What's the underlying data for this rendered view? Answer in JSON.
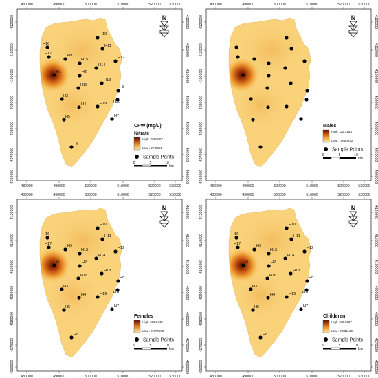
{
  "xticks": [
    "480000",
    "490000",
    "500000",
    "510000",
    "520000",
    "530000"
  ],
  "yticks": [
    "4120000",
    "4110000",
    "4100000",
    "4090000",
    "4080000",
    "4070000",
    "4060000"
  ],
  "sample_points": [
    {
      "label": "H16"
    },
    {
      "label": "H17"
    },
    {
      "label": "H9"
    },
    {
      "label": "H10"
    },
    {
      "label": "H11"
    },
    {
      "label": "H15"
    },
    {
      "label": "H14"
    },
    {
      "label": "H12"
    },
    {
      "label": "H1"
    },
    {
      "label": "H2"
    },
    {
      "label": "H18"
    },
    {
      "label": "H13"
    },
    {
      "label": "H8"
    },
    {
      "label": "H3"
    },
    {
      "label": "H20"
    },
    {
      "label": "H4"
    },
    {
      "label": "H19"
    },
    {
      "label": "H7"
    },
    {
      "label": "H5"
    },
    {
      "label": "H6"
    }
  ],
  "north_letter": "N",
  "scale": {
    "labels": [
      "0",
      "5",
      "10"
    ],
    "unit": "km"
  },
  "panels": [
    {
      "title": "CPW (mg/L)",
      "subtitle": "Nitrate",
      "high": "High : 544.807",
      "low": "Low : 27.0351",
      "sample_points_label": "Sample Points",
      "show_labels": true
    },
    {
      "title": "Males",
      "subtitle": "",
      "high": "High : 22.7154",
      "low": "Low : 0.650842",
      "sample_points_label": "Sample Points",
      "show_labels": false
    },
    {
      "title": "Females",
      "subtitle": "",
      "high": "High : 26.8445",
      "low": "Low : 0.770998",
      "sample_points_label": "Sample Points",
      "show_labels": true
    },
    {
      "title": "Childeren",
      "subtitle": "",
      "high": "High : 30.7037",
      "low": "Low : 0.881139",
      "sample_points_label": "Sample Points",
      "show_labels": true
    }
  ]
}
